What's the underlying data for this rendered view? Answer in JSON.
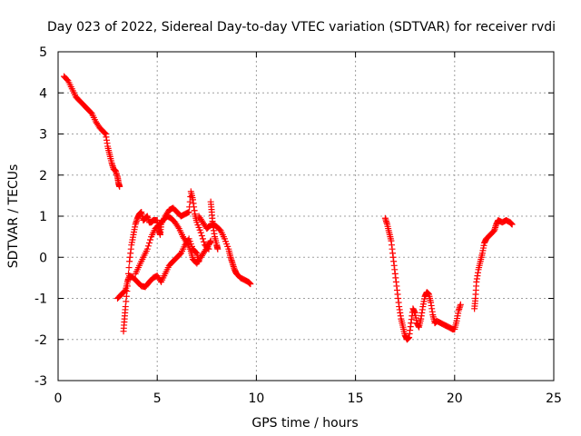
{
  "chart_data": {
    "type": "scatter",
    "title": "Day 023 of 2022, Sidereal Day-to-day VTEC variation (SDTVAR) for receiver rvdi",
    "xlabel": "GPS time / hours",
    "ylabel": "SDTVAR / TECUs",
    "xlim": [
      0,
      25
    ],
    "ylim": [
      -3,
      5
    ],
    "xticks": [
      0,
      5,
      10,
      15,
      20,
      25
    ],
    "yticks": [
      -3,
      -2,
      -1,
      0,
      1,
      2,
      3,
      4,
      5
    ],
    "grid": true,
    "marker": "+",
    "color": "#ff0000",
    "series": [
      {
        "name": "SDTVAR",
        "segments": [
          [
            [
              0.3,
              4.4
            ],
            [
              0.5,
              4.3
            ],
            [
              0.7,
              4.1
            ],
            [
              0.9,
              3.9
            ],
            [
              1.1,
              3.8
            ],
            [
              1.3,
              3.7
            ],
            [
              1.5,
              3.6
            ],
            [
              1.7,
              3.5
            ],
            [
              1.9,
              3.3
            ],
            [
              2.1,
              3.15
            ],
            [
              2.3,
              3.05
            ],
            [
              2.4,
              3.0
            ],
            [
              2.5,
              2.7
            ],
            [
              2.6,
              2.5
            ],
            [
              2.7,
              2.3
            ],
            [
              2.8,
              2.15
            ],
            [
              2.9,
              2.1
            ],
            [
              3.0,
              1.95
            ],
            [
              3.05,
              1.8
            ],
            [
              3.1,
              1.72
            ]
          ],
          [
            [
              3.0,
              -1.0
            ],
            [
              3.2,
              -0.9
            ],
            [
              3.4,
              -0.8
            ],
            [
              3.5,
              -0.6
            ],
            [
              3.6,
              -0.45
            ],
            [
              3.8,
              -0.5
            ],
            [
              4.0,
              -0.6
            ],
            [
              4.2,
              -0.7
            ],
            [
              4.4,
              -0.72
            ],
            [
              4.6,
              -0.6
            ],
            [
              4.8,
              -0.5
            ],
            [
              5.0,
              -0.45
            ],
            [
              5.2,
              -0.6
            ],
            [
              5.4,
              -0.4
            ],
            [
              5.6,
              -0.2
            ],
            [
              5.8,
              -0.1
            ],
            [
              6.0,
              0.0
            ],
            [
              6.2,
              0.1
            ],
            [
              6.4,
              0.3
            ],
            [
              6.6,
              0.45
            ],
            [
              6.8,
              0.2
            ],
            [
              7.0,
              0.1
            ],
            [
              7.1,
              -0.1
            ]
          ],
          [
            [
              3.3,
              -1.8
            ],
            [
              3.35,
              -1.5
            ],
            [
              3.4,
              -1.2
            ],
            [
              3.5,
              -0.7
            ],
            [
              3.6,
              -0.1
            ],
            [
              3.7,
              0.3
            ],
            [
              3.8,
              0.55
            ],
            [
              3.9,
              0.8
            ],
            [
              4.0,
              0.95
            ],
            [
              4.1,
              1.05
            ],
            [
              4.2,
              1.1
            ],
            [
              4.3,
              0.9
            ],
            [
              4.4,
              0.95
            ],
            [
              4.5,
              1.0
            ],
            [
              4.6,
              0.85
            ],
            [
              4.7,
              0.85
            ],
            [
              4.8,
              0.9
            ],
            [
              5.0,
              0.9
            ],
            [
              5.1,
              0.65
            ],
            [
              5.15,
              0.55
            ],
            [
              5.2,
              0.8
            ],
            [
              5.4,
              1.0
            ],
            [
              5.6,
              1.15
            ],
            [
              5.8,
              1.2
            ],
            [
              6.0,
              1.1
            ],
            [
              6.2,
              1.0
            ],
            [
              6.4,
              1.05
            ],
            [
              6.6,
              1.1
            ],
            [
              6.7,
              1.6
            ],
            [
              6.8,
              1.4
            ],
            [
              6.9,
              1.05
            ],
            [
              7.0,
              0.85
            ],
            [
              7.2,
              0.6
            ],
            [
              7.4,
              0.3
            ],
            [
              7.6,
              0.2
            ]
          ],
          [
            [
              3.9,
              -0.4
            ],
            [
              4.1,
              -0.2
            ],
            [
              4.3,
              0.0
            ],
            [
              4.5,
              0.2
            ],
            [
              4.7,
              0.5
            ],
            [
              4.9,
              0.7
            ],
            [
              5.1,
              0.8
            ],
            [
              5.3,
              0.9
            ],
            [
              5.5,
              1.0
            ],
            [
              5.7,
              0.95
            ],
            [
              5.9,
              0.85
            ],
            [
              6.1,
              0.7
            ],
            [
              6.3,
              0.5
            ],
            [
              6.5,
              0.35
            ],
            [
              6.7,
              0.15
            ],
            [
              6.8,
              -0.05
            ],
            [
              7.0,
              -0.15
            ],
            [
              7.2,
              0.0
            ],
            [
              7.4,
              0.15
            ],
            [
              7.6,
              0.3
            ],
            [
              7.7,
              0.4
            ]
          ],
          [
            [
              7.1,
              1.0
            ],
            [
              7.3,
              0.85
            ],
            [
              7.5,
              0.7
            ],
            [
              7.6,
              0.75
            ],
            [
              7.8,
              0.8
            ],
            [
              8.0,
              0.75
            ],
            [
              8.2,
              0.65
            ],
            [
              8.4,
              0.45
            ],
            [
              8.6,
              0.2
            ],
            [
              8.7,
              0.0
            ],
            [
              8.8,
              -0.15
            ],
            [
              8.9,
              -0.3
            ],
            [
              9.0,
              -0.4
            ],
            [
              9.2,
              -0.5
            ],
            [
              9.4,
              -0.55
            ],
            [
              9.6,
              -0.6
            ],
            [
              9.7,
              -0.65
            ]
          ],
          [
            [
              7.7,
              1.35
            ],
            [
              7.75,
              1.1
            ],
            [
              7.8,
              0.8
            ],
            [
              7.9,
              0.5
            ],
            [
              8.0,
              0.3
            ],
            [
              8.05,
              0.2
            ]
          ],
          [
            [
              16.5,
              0.95
            ],
            [
              16.6,
              0.8
            ],
            [
              16.7,
              0.6
            ],
            [
              16.8,
              0.4
            ],
            [
              16.9,
              0.0
            ],
            [
              17.0,
              -0.4
            ],
            [
              17.1,
              -0.8
            ],
            [
              17.2,
              -1.2
            ],
            [
              17.3,
              -1.5
            ],
            [
              17.4,
              -1.7
            ],
            [
              17.5,
              -1.9
            ],
            [
              17.6,
              -2.0
            ],
            [
              17.7,
              -1.95
            ],
            [
              17.8,
              -1.6
            ],
            [
              17.9,
              -1.25
            ],
            [
              18.0,
              -1.35
            ],
            [
              18.1,
              -1.6
            ],
            [
              18.2,
              -1.7
            ],
            [
              18.3,
              -1.5
            ],
            [
              18.4,
              -1.2
            ],
            [
              18.5,
              -0.95
            ],
            [
              18.6,
              -0.85
            ],
            [
              18.7,
              -0.9
            ],
            [
              18.8,
              -1.1
            ],
            [
              18.9,
              -1.4
            ],
            [
              19.0,
              -1.6
            ],
            [
              19.1,
              -1.55
            ],
            [
              19.3,
              -1.6
            ],
            [
              19.5,
              -1.65
            ],
            [
              19.7,
              -1.7
            ],
            [
              19.9,
              -1.75
            ],
            [
              20.0,
              -1.75
            ],
            [
              20.1,
              -1.55
            ],
            [
              20.2,
              -1.3
            ],
            [
              20.3,
              -1.15
            ]
          ],
          [
            [
              21.0,
              -1.25
            ],
            [
              21.05,
              -1.0
            ],
            [
              21.1,
              -0.6
            ],
            [
              21.2,
              -0.3
            ],
            [
              21.3,
              -0.1
            ],
            [
              21.4,
              0.1
            ],
            [
              21.5,
              0.35
            ],
            [
              21.6,
              0.45
            ],
            [
              21.8,
              0.55
            ],
            [
              22.0,
              0.65
            ],
            [
              22.1,
              0.8
            ],
            [
              22.2,
              0.9
            ],
            [
              22.4,
              0.85
            ],
            [
              22.6,
              0.9
            ],
            [
              22.8,
              0.85
            ],
            [
              22.9,
              0.8
            ]
          ]
        ]
      }
    ]
  }
}
